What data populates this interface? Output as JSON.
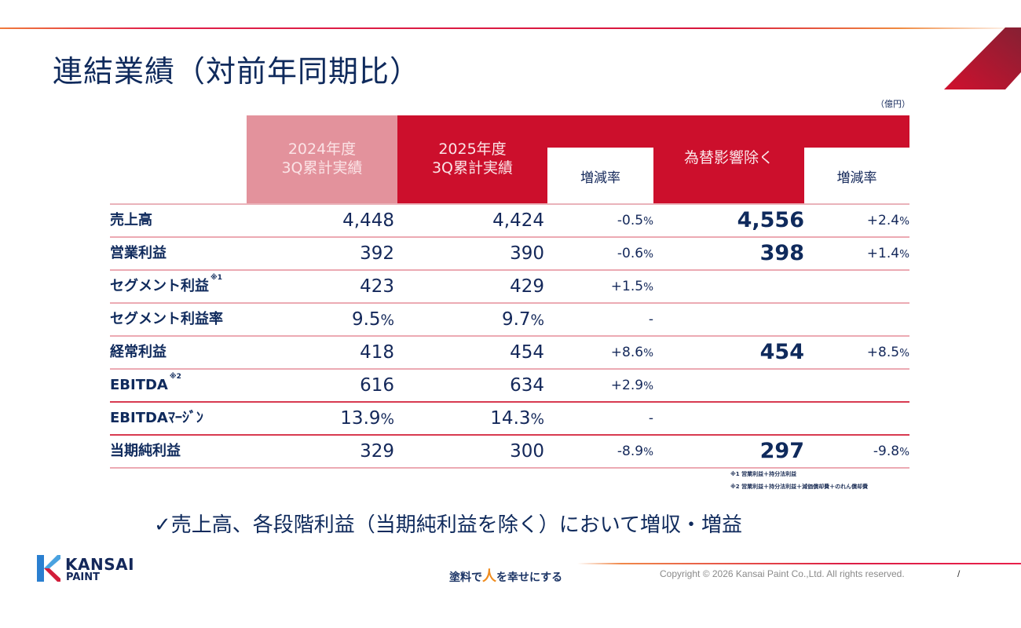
{
  "title": "連結業績（対前年同期比）",
  "unit": "（億円）",
  "table": {
    "headers": [
      {
        "line1": "2024年度",
        "line2": "3Q累計実績"
      },
      {
        "line1": "2025年度",
        "line2": "3Q累計実績"
      },
      {
        "line1": "増減率"
      },
      {
        "line1": "為替影響除く"
      },
      {
        "line1": "増減率"
      }
    ],
    "rows": [
      {
        "label": "売上高",
        "note": "",
        "fy2024": "4,448",
        "fy2025": "4,424",
        "change": "-0.5",
        "change_unit": "%",
        "ex_fx": "4,556",
        "ex_fx_change": "+2.4",
        "ex_fx_change_unit": "%"
      },
      {
        "label": "営業利益",
        "note": "",
        "fy2024": "392",
        "fy2025": "390",
        "change": "-0.6",
        "change_unit": "%",
        "ex_fx": "398",
        "ex_fx_change": "+1.4",
        "ex_fx_change_unit": "%"
      },
      {
        "label": "セグメント利益",
        "note": "※1",
        "fy2024": "423",
        "fy2025": "429",
        "change": "+1.5",
        "change_unit": "%",
        "ex_fx": "",
        "ex_fx_change": "",
        "ex_fx_change_unit": ""
      },
      {
        "label": "セグメント利益率",
        "note": "",
        "fy2024": "9.5",
        "fy2024_unit": "%",
        "fy2025": "9.7",
        "fy2025_unit": "%",
        "change": "-",
        "change_unit": "",
        "ex_fx": "",
        "ex_fx_change": "",
        "ex_fx_change_unit": ""
      },
      {
        "label": "経常利益",
        "note": "",
        "fy2024": "418",
        "fy2025": "454",
        "change": "+8.6",
        "change_unit": "%",
        "ex_fx": "454",
        "ex_fx_change": "+8.5",
        "ex_fx_change_unit": "%"
      },
      {
        "label": "EBITDA",
        "note": "※2",
        "fy2024": "616",
        "fy2025": "634",
        "change": "+2.9",
        "change_unit": "%",
        "ex_fx": "",
        "ex_fx_change": "",
        "ex_fx_change_unit": ""
      },
      {
        "label": "EBITDAﾏｰｼﾞﾝ",
        "note": "",
        "fy2024": "13.9",
        "fy2024_unit": "%",
        "fy2025": "14.3",
        "fy2025_unit": "%",
        "change": "-",
        "change_unit": "",
        "ex_fx": "",
        "ex_fx_change": "",
        "ex_fx_change_unit": ""
      },
      {
        "label": "当期純利益",
        "note": "",
        "fy2024": "329",
        "fy2025": "300",
        "change": "-8.9",
        "change_unit": "%",
        "ex_fx": "297",
        "ex_fx_change": "-9.8",
        "ex_fx_change_unit": "%"
      }
    ]
  },
  "footnotes": [
    "※1  営業利益＋持分法利益",
    "※2  営業利益＋持分法利益＋減価償却費＋のれん償却費"
  ],
  "conclusion": "✓売上高、各段階利益（当期純利益を除く）において増収・増益",
  "footer": {
    "logo_line1": "KANSAI",
    "logo_line2": "PAINT",
    "tagline_pre": "塗料で",
    "tagline_hito": "人",
    "tagline_post": "を幸せにする",
    "copyright": "Copyright © 2026 Kansai Paint Co.,Ltd. All rights reserved.",
    "page_sep": "/"
  },
  "colors": {
    "brand_red": "#cc0f2c",
    "light_red": "#e3929c",
    "navy": "#0f2a5c"
  }
}
